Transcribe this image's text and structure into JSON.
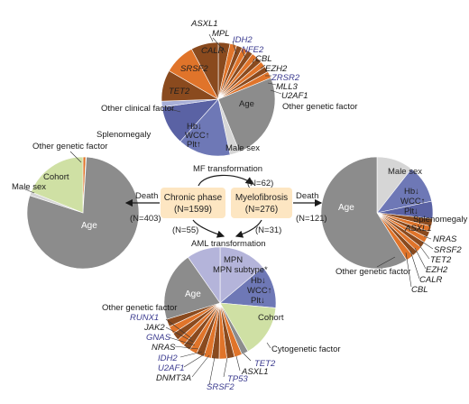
{
  "colors": {
    "age": "#8c8c8c",
    "male_sex": "#d6d6d6",
    "blood_counts": "#6e78b6",
    "mpn_subtype": "#b4b4da",
    "cohort": "#cfe0a4",
    "splenomegaly": "#5a62a4",
    "clinical_factor": "#a9b0d8",
    "dark_orange": "#8a4a1e",
    "orange": "#e0742a",
    "gene_blue": "#3b3b8f",
    "box_fill": "#fde6c2"
  },
  "center": {
    "chronic_phase": {
      "line1": "Chronic phase",
      "line2": "(N=1599)"
    },
    "myelofibrosis": {
      "line1": "Myelofibrosis",
      "line2": "(N=276)"
    },
    "mf_transformation": "MF transformation",
    "mf_n": "(N=62)",
    "aml_transformation": "AML transformation",
    "aml_n_left": "(N=55)",
    "aml_n_right": "(N=31)",
    "death_left": "Death",
    "death_left_n": "(N=403)",
    "death_right": "Death",
    "death_right_n": "(N=121)"
  },
  "pie_top": {
    "labels": {
      "asxl1": "ASXL1",
      "mpl": "MPL",
      "idh2": "IDH2",
      "nfe2": "NFE2",
      "cbl": "CBL",
      "ezh2": "EZH2",
      "zrsr2": "ZRSR2",
      "mll3": "MLL3",
      "u2af1": "U2AF1",
      "other_genetic": "Other genetic factor",
      "age": "Age",
      "male_sex": "Male sex",
      "hb": "Hb↓",
      "wcc": "WCC↑",
      "plt": "Plt↑",
      "splenomegaly": "Splenomegaly",
      "other_clinical": "Other clinical factor",
      "tet2": "TET2",
      "srsf2": "SRSF2",
      "calr": "CALR"
    }
  },
  "pie_left": {
    "labels": {
      "other_genetic": "Other genetic factor",
      "cohort": "Cohort",
      "male_sex": "Male sex",
      "age": "Age"
    }
  },
  "pie_right": {
    "labels": {
      "male_sex": "Male sex",
      "hb": "Hb↓",
      "wcc": "WCC↑",
      "plt": "Plt↓",
      "splenomegaly": "Splenomegaly",
      "age": "Age",
      "asxl1": "ASXL1",
      "nras": "NRAS",
      "srsf2": "SRSF2",
      "tet2": "TET2",
      "ezh2": "EZH2",
      "calr": "CALR",
      "cbl": "CBL",
      "other_genetic": "Other genetic factor"
    }
  },
  "pie_bottom": {
    "labels": {
      "mpn_subtype": "MPN subtype*",
      "hb": "Hb↓",
      "wcc": "WCC↑",
      "plt": "Plt↓",
      "age": "Age",
      "cohort": "Cohort",
      "cytogenetic": "Cytogenetic factor",
      "tet2": "TET2",
      "asxl1": "ASXL1",
      "tp53": "TP53",
      "srsf2": "SRSF2",
      "dnmt3a": "DNMT3A",
      "u2af1": "U2AF1",
      "idh2": "IDH2",
      "nras": "NRAS",
      "gnas": "GNAS",
      "jak2": "JAK2",
      "runx1": "RUNX1",
      "other_genetic": "Other genetic factor"
    }
  }
}
